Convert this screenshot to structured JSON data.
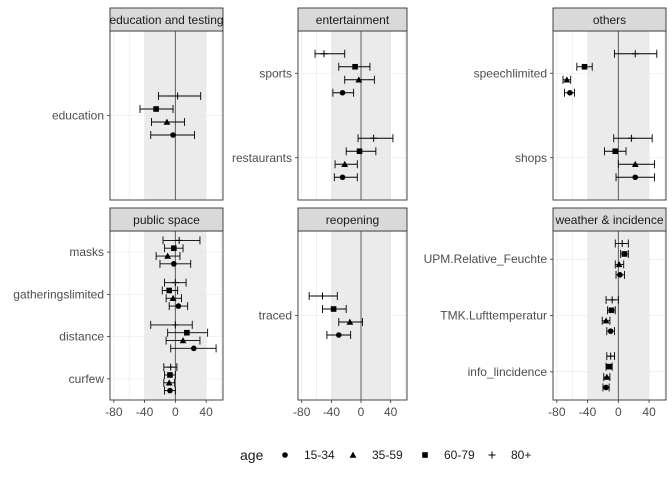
{
  "chart_data": {
    "type": "scatter",
    "subtype": "forest-plot-faceted",
    "xlim": [
      -85,
      62
    ],
    "x_ticks": [
      -80,
      -40,
      0,
      40
    ],
    "shaded_band": [
      -40,
      40
    ],
    "grid": true,
    "legend": {
      "title": "age",
      "position": "bottom",
      "entries": [
        {
          "label": "15-34",
          "shape": "circle"
        },
        {
          "label": "35-59",
          "shape": "triangle"
        },
        {
          "label": "60-79",
          "shape": "square"
        },
        {
          "label": "80+",
          "shape": "plus"
        }
      ]
    },
    "facets": [
      {
        "title": "education and testing",
        "categories": [
          "education"
        ],
        "points": [
          {
            "category": "education",
            "age": "80+",
            "x": 3,
            "lo": -22,
            "hi": 33
          },
          {
            "category": "education",
            "age": "60-79",
            "x": -25,
            "lo": -46,
            "hi": -3
          },
          {
            "category": "education",
            "age": "35-59",
            "x": -11,
            "lo": -31,
            "hi": 12
          },
          {
            "category": "education",
            "age": "15-34",
            "x": -3,
            "lo": -32,
            "hi": 25
          }
        ]
      },
      {
        "title": "entertainment",
        "categories": [
          "sports",
          "restaurants"
        ],
        "points": [
          {
            "category": "sports",
            "age": "80+",
            "x": -50,
            "lo": -62,
            "hi": -22
          },
          {
            "category": "sports",
            "age": "60-79",
            "x": -8,
            "lo": -30,
            "hi": 12
          },
          {
            "category": "sports",
            "age": "35-59",
            "x": -3,
            "lo": -22,
            "hi": 18
          },
          {
            "category": "sports",
            "age": "15-34",
            "x": -25,
            "lo": -38,
            "hi": -10
          },
          {
            "category": "restaurants",
            "age": "80+",
            "x": 17,
            "lo": -4,
            "hi": 43
          },
          {
            "category": "restaurants",
            "age": "60-79",
            "x": -2,
            "lo": -20,
            "hi": 20
          },
          {
            "category": "restaurants",
            "age": "35-59",
            "x": -22,
            "lo": -35,
            "hi": -5
          },
          {
            "category": "restaurants",
            "age": "15-34",
            "x": -25,
            "lo": -36,
            "hi": -5
          }
        ]
      },
      {
        "title": "others",
        "categories": [
          "speechlimited",
          "shops"
        ],
        "points": [
          {
            "category": "speechlimited",
            "age": "80+",
            "x": 22,
            "lo": -5,
            "hi": 50
          },
          {
            "category": "speechlimited",
            "age": "60-79",
            "x": -44,
            "lo": -54,
            "hi": -34
          },
          {
            "category": "speechlimited",
            "age": "35-59",
            "x": -67,
            "lo": -72,
            "hi": -62
          },
          {
            "category": "speechlimited",
            "age": "15-34",
            "x": -63,
            "lo": -70,
            "hi": -57
          },
          {
            "category": "shops",
            "age": "80+",
            "x": 17,
            "lo": -6,
            "hi": 44
          },
          {
            "category": "shops",
            "age": "60-79",
            "x": -4,
            "lo": -18,
            "hi": 10
          },
          {
            "category": "shops",
            "age": "35-59",
            "x": 22,
            "lo": 0,
            "hi": 47
          },
          {
            "category": "shops",
            "age": "15-34",
            "x": 22,
            "lo": -3,
            "hi": 47
          }
        ]
      },
      {
        "title": "public space",
        "categories": [
          "masks",
          "gatheringslimited",
          "distance",
          "curfew"
        ],
        "points": [
          {
            "category": "masks",
            "age": "80+",
            "x": 5,
            "lo": -16,
            "hi": 32
          },
          {
            "category": "masks",
            "age": "60-79",
            "x": -2,
            "lo": -14,
            "hi": 10
          },
          {
            "category": "masks",
            "age": "35-59",
            "x": -10,
            "lo": -25,
            "hi": 6
          },
          {
            "category": "masks",
            "age": "15-34",
            "x": -2,
            "lo": -20,
            "hi": 20
          },
          {
            "category": "gatheringslimited",
            "age": "80+",
            "x": 0,
            "lo": -14,
            "hi": 14
          },
          {
            "category": "gatheringslimited",
            "age": "60-79",
            "x": -8,
            "lo": -17,
            "hi": 3
          },
          {
            "category": "gatheringslimited",
            "age": "35-59",
            "x": -3,
            "lo": -12,
            "hi": 8
          },
          {
            "category": "gatheringslimited",
            "age": "15-34",
            "x": 4,
            "lo": -8,
            "hi": 16
          },
          {
            "category": "distance",
            "age": "80+",
            "x": 0,
            "lo": -32,
            "hi": 22
          },
          {
            "category": "distance",
            "age": "60-79",
            "x": 15,
            "lo": -10,
            "hi": 42
          },
          {
            "category": "distance",
            "age": "35-59",
            "x": 10,
            "lo": -12,
            "hi": 32
          },
          {
            "category": "distance",
            "age": "15-34",
            "x": 24,
            "lo": -6,
            "hi": 53
          },
          {
            "category": "curfew",
            "age": "80+",
            "x": -6,
            "lo": -15,
            "hi": 2
          },
          {
            "category": "curfew",
            "age": "60-79",
            "x": -7,
            "lo": -14,
            "hi": 0
          },
          {
            "category": "curfew",
            "age": "35-59",
            "x": -8,
            "lo": -15,
            "hi": -1
          },
          {
            "category": "curfew",
            "age": "15-34",
            "x": -7,
            "lo": -14,
            "hi": 0
          }
        ]
      },
      {
        "title": "reopening",
        "categories": [
          "traced"
        ],
        "points": [
          {
            "category": "traced",
            "age": "80+",
            "x": -52,
            "lo": -70,
            "hi": -32
          },
          {
            "category": "traced",
            "age": "60-79",
            "x": -37,
            "lo": -52,
            "hi": -20
          },
          {
            "category": "traced",
            "age": "35-59",
            "x": -15,
            "lo": -30,
            "hi": 2
          },
          {
            "category": "traced",
            "age": "15-34",
            "x": -30,
            "lo": -46,
            "hi": -14
          }
        ]
      },
      {
        "title": "weather & incidence",
        "categories": [
          "UPM.Relative_Feuchte",
          "TMK.Lufttemperatur",
          "info_lincidence"
        ],
        "points": [
          {
            "category": "UPM.Relative_Feuchte",
            "age": "80+",
            "x": 5,
            "lo": -4,
            "hi": 13
          },
          {
            "category": "UPM.Relative_Feuchte",
            "age": "60-79",
            "x": 8,
            "lo": 3,
            "hi": 13
          },
          {
            "category": "UPM.Relative_Feuchte",
            "age": "35-59",
            "x": 1,
            "lo": -4,
            "hi": 7
          },
          {
            "category": "UPM.Relative_Feuchte",
            "age": "15-34",
            "x": 2,
            "lo": -3,
            "hi": 8
          },
          {
            "category": "TMK.Lufttemperatur",
            "age": "80+",
            "x": -8,
            "lo": -16,
            "hi": 0
          },
          {
            "category": "TMK.Lufttemperatur",
            "age": "60-79",
            "x": -9,
            "lo": -14,
            "hi": -4
          },
          {
            "category": "TMK.Lufttemperatur",
            "age": "35-59",
            "x": -16,
            "lo": -21,
            "hi": -11
          },
          {
            "category": "TMK.Lufttemperatur",
            "age": "15-34",
            "x": -10,
            "lo": -15,
            "hi": -5
          },
          {
            "category": "info_lincidence",
            "age": "80+",
            "x": -10,
            "lo": -15,
            "hi": -5
          },
          {
            "category": "info_lincidence",
            "age": "60-79",
            "x": -12,
            "lo": -16,
            "hi": -8
          },
          {
            "category": "info_lincidence",
            "age": "35-59",
            "x": -15,
            "lo": -19,
            "hi": -11
          },
          {
            "category": "info_lincidence",
            "age": "15-34",
            "x": -16,
            "lo": -20,
            "hi": -12
          }
        ]
      }
    ]
  },
  "colors": {
    "panel_border": "#333333",
    "strip_fill": "#d9d9d9",
    "band_fill": "#ebebeb",
    "grid": "#e6e6e6",
    "zero_line": "#4d4d4d",
    "marks": "#000000"
  }
}
